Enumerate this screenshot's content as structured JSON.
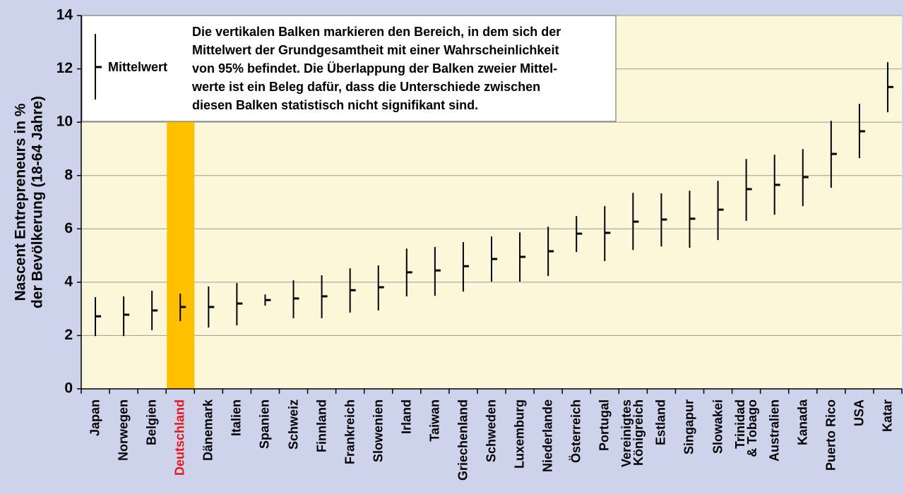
{
  "chart_data": {
    "type": "errorbar",
    "y_label": [
      "Nascent Entrepreneurs in %",
      "der Bevölkerung (18-64 Jahre)"
    ],
    "categories": [
      "Japan",
      "Norwegen",
      "Belgien",
      "Deutschland",
      "Dänemark",
      "Italien",
      "Spanien",
      "Schweiz",
      "Finnland",
      "Frankreich",
      "Slowenien",
      "Irland",
      "Taiwan",
      "Griechenland",
      "Schweden",
      "Luxemburg",
      "Niederlande",
      "Österreich",
      "Portugal",
      "Vereinigtes\nKönigreich",
      "Estland",
      "Singapur",
      "Slowakei",
      "Trinidad\n& Tobago",
      "Australien",
      "Kanada",
      "Puerto Rico",
      "USA",
      "Katar"
    ],
    "series": [
      {
        "name": "Mittelwert",
        "color": "#000000",
        "values": [
          2.72,
          2.78,
          2.94,
          3.07,
          3.07,
          3.2,
          3.33,
          3.39,
          3.47,
          3.7,
          3.81,
          4.37,
          4.44,
          4.6,
          4.87,
          4.95,
          5.16,
          5.82,
          5.85,
          6.27,
          6.35,
          6.38,
          6.72,
          7.49,
          7.65,
          7.94,
          8.81,
          9.66,
          11.32
        ],
        "low": [
          1.98,
          1.98,
          2.2,
          2.54,
          2.3,
          2.38,
          3.12,
          2.65,
          2.65,
          2.86,
          2.94,
          3.47,
          3.49,
          3.65,
          4.02,
          4.02,
          4.23,
          5.13,
          4.79,
          5.21,
          5.34,
          5.29,
          5.58,
          6.3,
          6.53,
          6.85,
          7.54,
          8.65,
          10.37
        ],
        "high": [
          3.44,
          3.47,
          3.68,
          3.57,
          3.84,
          3.97,
          3.54,
          4.07,
          4.26,
          4.52,
          4.63,
          5.26,
          5.32,
          5.5,
          5.71,
          5.87,
          6.08,
          6.48,
          6.85,
          7.35,
          7.33,
          7.43,
          7.8,
          8.62,
          8.78,
          8.99,
          10.05,
          10.69,
          12.25
        ]
      }
    ],
    "legend_note": [
      "Die vertikalen Balken markieren den Bereich, in dem sich der",
      "Mittelwert der Grundgesamtheit mit einer Wahrscheinlichkeit",
      "von 95% befindet. Die Überlappung der Balken zweier Mittel-",
      "werte ist ein Beleg dafür, dass die Unterschiede zwischen",
      "diesen Balken statistisch nicht signifikant sind."
    ],
    "highlight": "Deutschland",
    "highlight_color": "#ffc000",
    "highlight_label_color": "#e8141c",
    "ylim": [
      0,
      14
    ],
    "yticks": [
      0,
      2,
      4,
      6,
      8,
      10,
      12,
      14
    ],
    "grid": true
  }
}
